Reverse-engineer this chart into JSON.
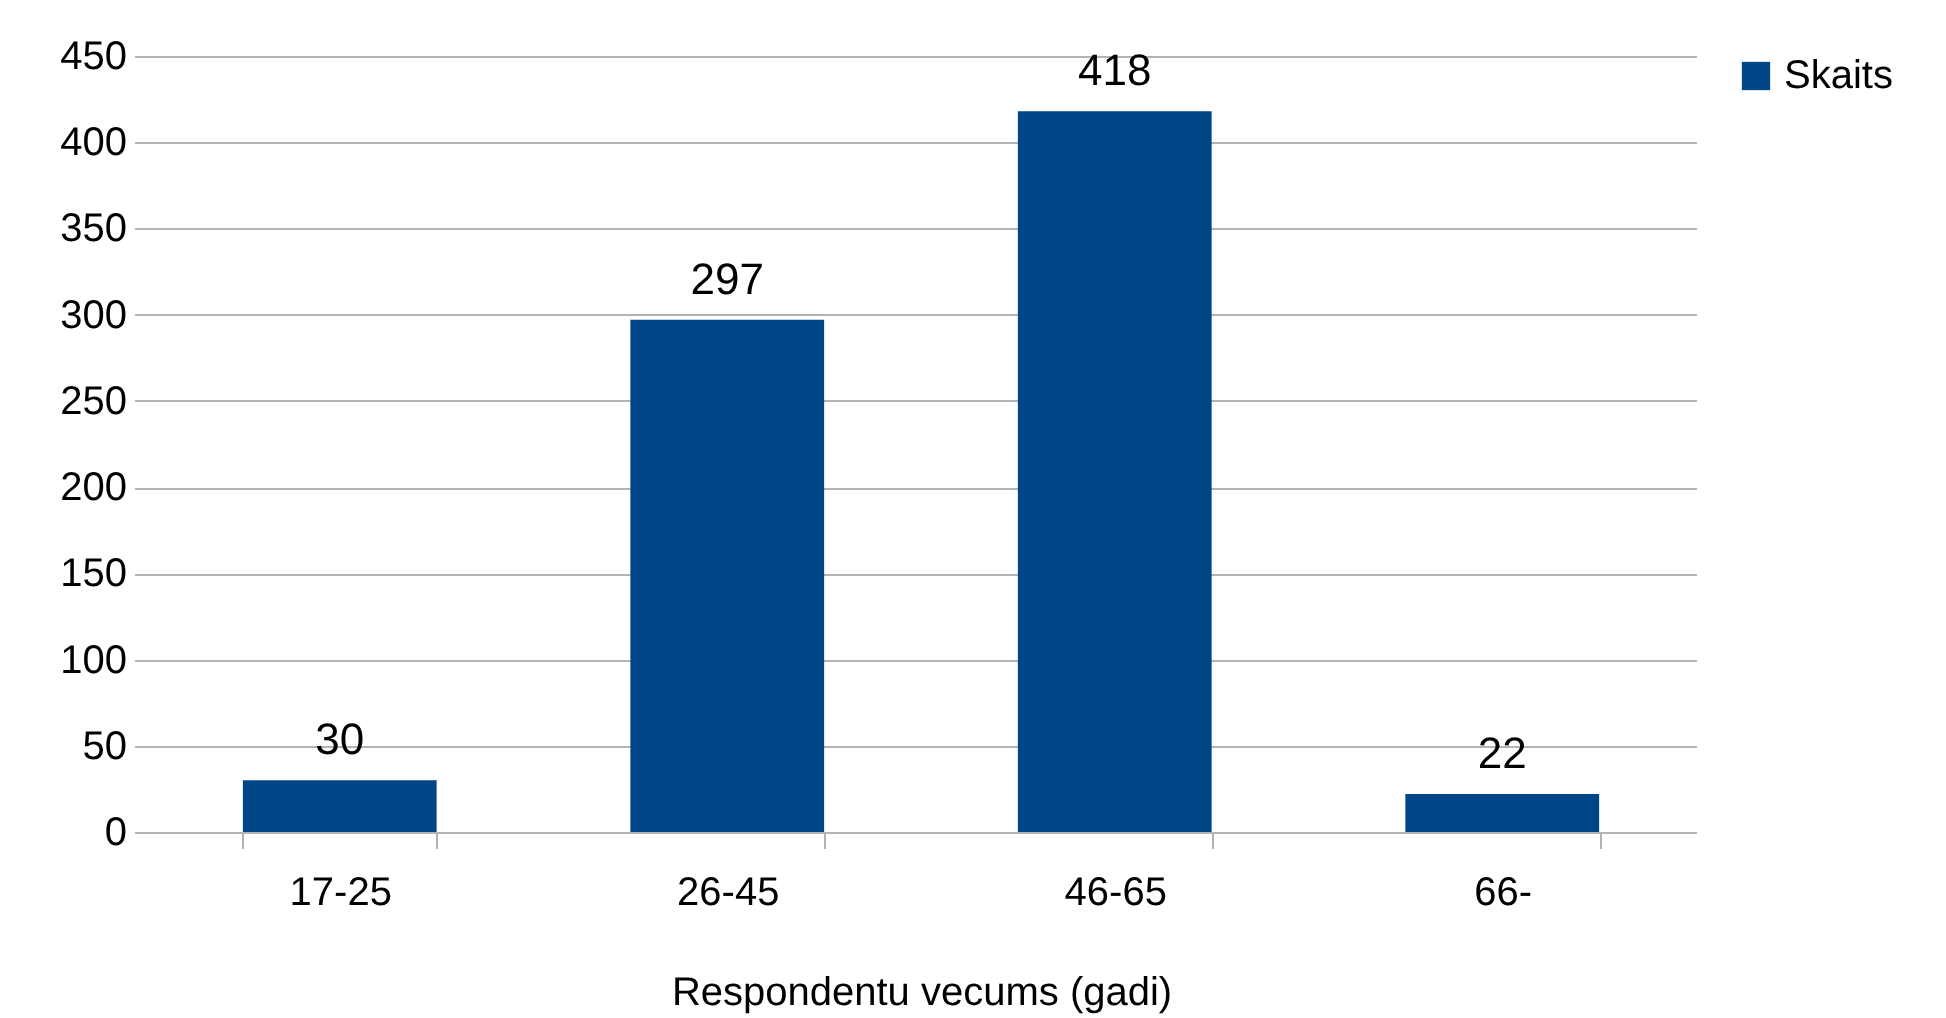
{
  "chart_data": {
    "type": "bar",
    "xlabel": "Respondentu vecums (gadi)",
    "categories": [
      "17-25",
      "26-45",
      "46-65",
      "66-"
    ],
    "series": [
      {
        "name": "Skaits",
        "color": "#004586",
        "values": [
          30,
          297,
          418,
          22
        ]
      }
    ],
    "ylim": [
      0,
      450
    ],
    "yticks": [
      0,
      50,
      100,
      150,
      200,
      250,
      300,
      350,
      400,
      450
    ],
    "grid": "y",
    "legend": "right",
    "data_labels": true
  }
}
